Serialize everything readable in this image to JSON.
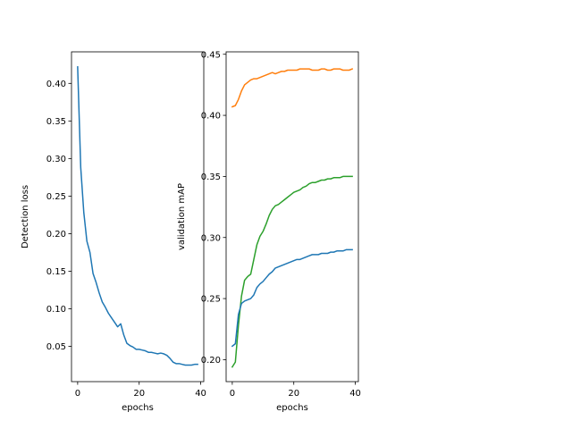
{
  "chart_data": [
    {
      "type": "line",
      "title": "",
      "xlabel": "epochs",
      "ylabel": "Detection loss",
      "xlim": [
        -2,
        41
      ],
      "ylim": [
        0.003,
        0.442
      ],
      "xticks": [
        0,
        20,
        40
      ],
      "yticks": [
        0.05,
        0.1,
        0.15,
        0.2,
        0.25,
        0.3,
        0.35,
        0.4
      ],
      "ytick_decimals": 2,
      "grid": false,
      "legend": "none",
      "series": [
        {
          "color": "#1f77b4",
          "x": [
            0,
            1,
            2,
            3,
            4,
            5,
            6,
            7,
            8,
            9,
            10,
            11,
            12,
            13,
            14,
            15,
            16,
            17,
            18,
            19,
            20,
            21,
            22,
            23,
            24,
            25,
            26,
            27,
            28,
            29,
            30,
            31,
            32,
            33,
            34,
            35,
            36,
            37,
            38,
            39
          ],
          "values": [
            0.422,
            0.288,
            0.228,
            0.19,
            0.175,
            0.147,
            0.135,
            0.121,
            0.109,
            0.102,
            0.094,
            0.088,
            0.082,
            0.076,
            0.08,
            0.065,
            0.054,
            0.051,
            0.049,
            0.046,
            0.046,
            0.045,
            0.044,
            0.042,
            0.042,
            0.041,
            0.04,
            0.041,
            0.04,
            0.038,
            0.034,
            0.029,
            0.027,
            0.027,
            0.026,
            0.025,
            0.025,
            0.025,
            0.026,
            0.026
          ]
        }
      ]
    },
    {
      "type": "line",
      "title": "",
      "xlabel": "epochs",
      "ylabel": "validation mAP",
      "xlim": [
        -2,
        41
      ],
      "ylim": [
        0.182,
        0.452
      ],
      "xticks": [
        0,
        20,
        40
      ],
      "yticks": [
        0.2,
        0.25,
        0.3,
        0.35,
        0.4,
        0.45
      ],
      "ytick_decimals": 2,
      "grid": false,
      "legend": "none",
      "series": [
        {
          "color": "#ff7f0e",
          "x": [
            0,
            1,
            2,
            3,
            4,
            5,
            6,
            7,
            8,
            9,
            10,
            11,
            12,
            13,
            14,
            15,
            16,
            17,
            18,
            19,
            20,
            21,
            22,
            23,
            24,
            25,
            26,
            27,
            28,
            29,
            30,
            31,
            32,
            33,
            34,
            35,
            36,
            37,
            38,
            39
          ],
          "values": [
            0.407,
            0.408,
            0.413,
            0.42,
            0.425,
            0.427,
            0.429,
            0.43,
            0.43,
            0.431,
            0.432,
            0.433,
            0.434,
            0.435,
            0.434,
            0.435,
            0.436,
            0.436,
            0.437,
            0.437,
            0.437,
            0.437,
            0.438,
            0.438,
            0.438,
            0.438,
            0.437,
            0.437,
            0.437,
            0.438,
            0.438,
            0.437,
            0.437,
            0.438,
            0.438,
            0.438,
            0.437,
            0.437,
            0.437,
            0.438
          ]
        },
        {
          "color": "#2ca02c",
          "x": [
            0,
            1,
            2,
            3,
            4,
            5,
            6,
            7,
            8,
            9,
            10,
            11,
            12,
            13,
            14,
            15,
            16,
            17,
            18,
            19,
            20,
            21,
            22,
            23,
            24,
            25,
            26,
            27,
            28,
            29,
            30,
            31,
            32,
            33,
            34,
            35,
            36,
            37,
            38,
            39
          ],
          "values": [
            0.194,
            0.198,
            0.228,
            0.252,
            0.265,
            0.268,
            0.27,
            0.282,
            0.294,
            0.301,
            0.305,
            0.311,
            0.318,
            0.323,
            0.326,
            0.327,
            0.329,
            0.331,
            0.333,
            0.335,
            0.337,
            0.338,
            0.339,
            0.341,
            0.342,
            0.344,
            0.345,
            0.345,
            0.346,
            0.347,
            0.347,
            0.348,
            0.348,
            0.349,
            0.349,
            0.349,
            0.35,
            0.35,
            0.35,
            0.35
          ]
        },
        {
          "color": "#1f77b4",
          "x": [
            0,
            1,
            2,
            3,
            4,
            5,
            6,
            7,
            8,
            9,
            10,
            11,
            12,
            13,
            14,
            15,
            16,
            17,
            18,
            19,
            20,
            21,
            22,
            23,
            24,
            25,
            26,
            27,
            28,
            29,
            30,
            31,
            32,
            33,
            34,
            35,
            36,
            37,
            38,
            39
          ],
          "values": [
            0.211,
            0.213,
            0.237,
            0.246,
            0.248,
            0.249,
            0.25,
            0.253,
            0.259,
            0.262,
            0.264,
            0.267,
            0.27,
            0.272,
            0.275,
            0.276,
            0.277,
            0.278,
            0.279,
            0.28,
            0.281,
            0.282,
            0.282,
            0.283,
            0.284,
            0.285,
            0.286,
            0.286,
            0.286,
            0.287,
            0.287,
            0.287,
            0.288,
            0.288,
            0.289,
            0.289,
            0.289,
            0.29,
            0.29,
            0.29
          ]
        }
      ]
    }
  ]
}
